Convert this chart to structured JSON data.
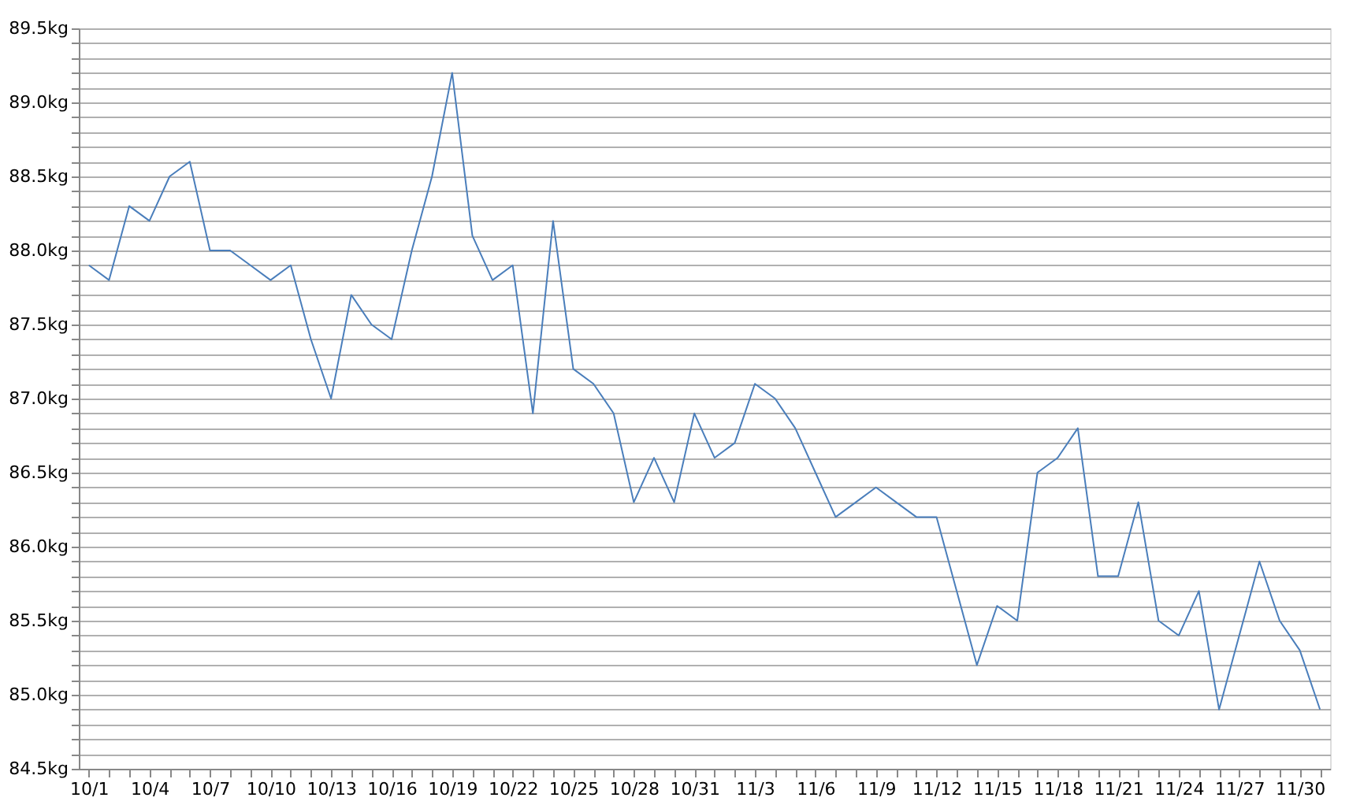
{
  "chart_data": {
    "type": "line",
    "categories": [
      "10/1",
      null,
      null,
      "10/4",
      null,
      null,
      "10/7",
      null,
      null,
      "10/10",
      null,
      null,
      "10/13",
      null,
      null,
      "10/16",
      null,
      null,
      "10/19",
      null,
      null,
      "10/22",
      null,
      null,
      "10/25",
      null,
      null,
      "10/28",
      null,
      null,
      "10/31",
      null,
      null,
      "11/3",
      null,
      null,
      "11/6",
      null,
      null,
      "11/9",
      null,
      null,
      "11/12",
      null,
      null,
      "11/15",
      null,
      null,
      "11/18",
      null,
      null,
      "11/21",
      null,
      null,
      "11/24",
      null,
      null,
      "11/27",
      null,
      null,
      "11/30",
      null
    ],
    "series": [
      {
        "color": "#4a7ebb",
        "values": [
          87.9,
          87.8,
          88.3,
          88.2,
          88.5,
          88.6,
          88.0,
          88.0,
          87.9,
          87.8,
          87.9,
          87.4,
          87.0,
          87.7,
          87.5,
          87.4,
          88.0,
          88.5,
          89.2,
          88.1,
          87.8,
          87.9,
          86.9,
          88.2,
          87.2,
          87.1,
          86.9,
          86.3,
          86.6,
          86.3,
          86.9,
          86.6,
          86.7,
          87.1,
          87.0,
          86.8,
          86.5,
          86.2,
          86.3,
          86.4,
          86.3,
          86.2,
          86.2,
          85.7,
          85.2,
          85.6,
          85.5,
          86.5,
          86.6,
          86.8,
          85.8,
          85.8,
          86.3,
          85.5,
          85.4,
          85.7,
          84.9,
          85.4,
          85.9,
          85.5,
          85.3,
          84.9
        ]
      }
    ],
    "ylim": [
      84.5,
      89.5
    ],
    "yticks": [
      {
        "value": 84.5,
        "label": "84.5kg"
      },
      {
        "value": 84.6,
        "label": null
      },
      {
        "value": 84.7,
        "label": null
      },
      {
        "value": 84.8,
        "label": null
      },
      {
        "value": 84.9,
        "label": null
      },
      {
        "value": 85.0,
        "label": "85.0kg"
      },
      {
        "value": 85.1,
        "label": null
      },
      {
        "value": 85.2,
        "label": null
      },
      {
        "value": 85.3,
        "label": null
      },
      {
        "value": 85.4,
        "label": null
      },
      {
        "value": 85.5,
        "label": "85.5kg"
      },
      {
        "value": 85.6,
        "label": null
      },
      {
        "value": 85.7,
        "label": null
      },
      {
        "value": 85.8,
        "label": null
      },
      {
        "value": 85.9,
        "label": null
      },
      {
        "value": 86.0,
        "label": "86.0kg"
      },
      {
        "value": 86.1,
        "label": null
      },
      {
        "value": 86.2,
        "label": null
      },
      {
        "value": 86.3,
        "label": null
      },
      {
        "value": 86.4,
        "label": null
      },
      {
        "value": 86.5,
        "label": "86.5kg"
      },
      {
        "value": 86.6,
        "label": null
      },
      {
        "value": 86.7,
        "label": null
      },
      {
        "value": 86.8,
        "label": null
      },
      {
        "value": 86.9,
        "label": null
      },
      {
        "value": 87.0,
        "label": "87.0kg"
      },
      {
        "value": 87.1,
        "label": null
      },
      {
        "value": 87.2,
        "label": null
      },
      {
        "value": 87.3,
        "label": null
      },
      {
        "value": 87.4,
        "label": null
      },
      {
        "value": 87.5,
        "label": "87.5kg"
      },
      {
        "value": 87.6,
        "label": null
      },
      {
        "value": 87.7,
        "label": null
      },
      {
        "value": 87.8,
        "label": null
      },
      {
        "value": 87.9,
        "label": null
      },
      {
        "value": 88.0,
        "label": "88.0kg"
      },
      {
        "value": 88.1,
        "label": null
      },
      {
        "value": 88.2,
        "label": null
      },
      {
        "value": 88.3,
        "label": null
      },
      {
        "value": 88.4,
        "label": null
      },
      {
        "value": 88.5,
        "label": "88.5kg"
      },
      {
        "value": 88.6,
        "label": null
      },
      {
        "value": 88.7,
        "label": null
      },
      {
        "value": 88.8,
        "label": null
      },
      {
        "value": 88.9,
        "label": null
      },
      {
        "value": 89.0,
        "label": "89.0kg"
      },
      {
        "value": 89.1,
        "label": null
      },
      {
        "value": 89.2,
        "label": null
      },
      {
        "value": 89.3,
        "label": null
      },
      {
        "value": 89.4,
        "label": null
      },
      {
        "value": 89.5,
        "label": "89.5kg"
      }
    ],
    "grid": "y",
    "legend": false,
    "marker": "none",
    "line_style": "solid"
  }
}
